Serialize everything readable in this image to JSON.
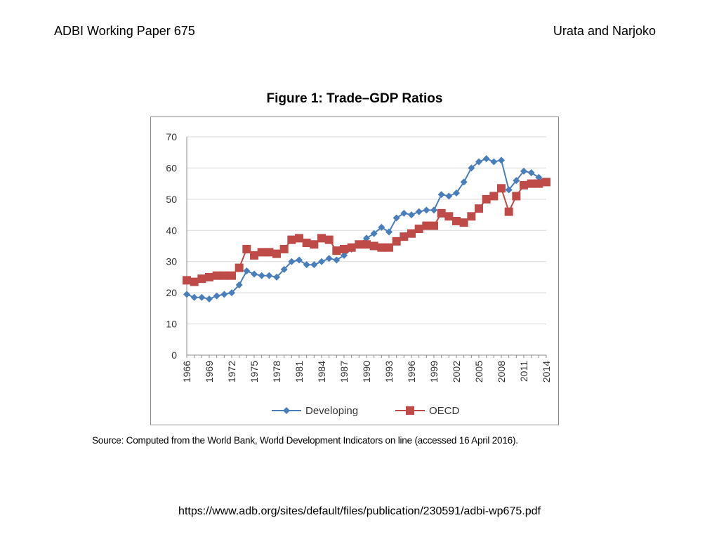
{
  "header": {
    "left": "ADBI Working Paper 675",
    "right": "Urata and Narjoko"
  },
  "figure_title": "Figure 1: Trade–GDP Ratios",
  "source_note": "Source: Computed from the World Bank, World Development Indicators on line (accessed 16 April 2016).",
  "footer_url": "https://www.adb.org/sites/default/files/publication/230591/adbi-wp675.pdf",
  "colors": {
    "developing": "#4a7ebb",
    "oecd": "#be4b48",
    "grid": "#d9d9d9"
  },
  "chart_data": {
    "type": "line",
    "title": "Figure 1: Trade–GDP Ratios",
    "x": [
      1966,
      1967,
      1968,
      1969,
      1970,
      1971,
      1972,
      1973,
      1974,
      1975,
      1976,
      1977,
      1978,
      1979,
      1980,
      1981,
      1982,
      1983,
      1984,
      1985,
      1986,
      1987,
      1988,
      1989,
      1990,
      1991,
      1992,
      1993,
      1994,
      1995,
      1996,
      1997,
      1998,
      1999,
      2000,
      2001,
      2002,
      2003,
      2004,
      2005,
      2006,
      2007,
      2008,
      2009,
      2010,
      2011,
      2012,
      2013,
      2014
    ],
    "xticks": [
      "1966",
      "1969",
      "1972",
      "1975",
      "1978",
      "1981",
      "1984",
      "1987",
      "1990",
      "1993",
      "1996",
      "1999",
      "2002",
      "2005",
      "2008",
      "2011",
      "2014"
    ],
    "xlim": [
      1966,
      2014
    ],
    "ylim": [
      0,
      70
    ],
    "yticks": [
      0,
      10,
      20,
      30,
      40,
      50,
      60,
      70
    ],
    "grid": true,
    "legend_position": "bottom",
    "series": [
      {
        "name": "Developing",
        "marker": "diamond",
        "values": [
          19.5,
          18.5,
          18.5,
          18,
          19,
          19.5,
          20,
          22.5,
          27,
          26,
          25.5,
          25.5,
          25,
          27.5,
          30,
          30.5,
          29,
          29,
          30,
          31,
          30.5,
          32,
          34,
          35.5,
          37.5,
          39,
          41,
          39.5,
          44,
          45.5,
          45,
          46,
          46.5,
          46.5,
          51.5,
          51,
          52,
          55.5,
          60,
          62,
          63,
          62,
          62.5,
          53,
          56,
          59,
          58.5,
          57,
          55.5
        ]
      },
      {
        "name": "OECD",
        "marker": "square",
        "values": [
          24,
          23.5,
          24.5,
          25,
          25.5,
          25.5,
          25.5,
          28,
          34,
          32,
          33,
          33,
          32.5,
          34,
          37,
          37.5,
          36,
          35.5,
          37.5,
          37,
          33.5,
          34,
          34.5,
          35.5,
          35.5,
          35,
          34.5,
          34.5,
          36.5,
          38,
          39,
          40.5,
          41.5,
          41.5,
          45.5,
          44.5,
          43,
          42.5,
          44.5,
          47,
          50,
          51,
          53.5,
          46,
          51,
          54.5,
          55,
          55,
          55.5
        ]
      }
    ]
  }
}
